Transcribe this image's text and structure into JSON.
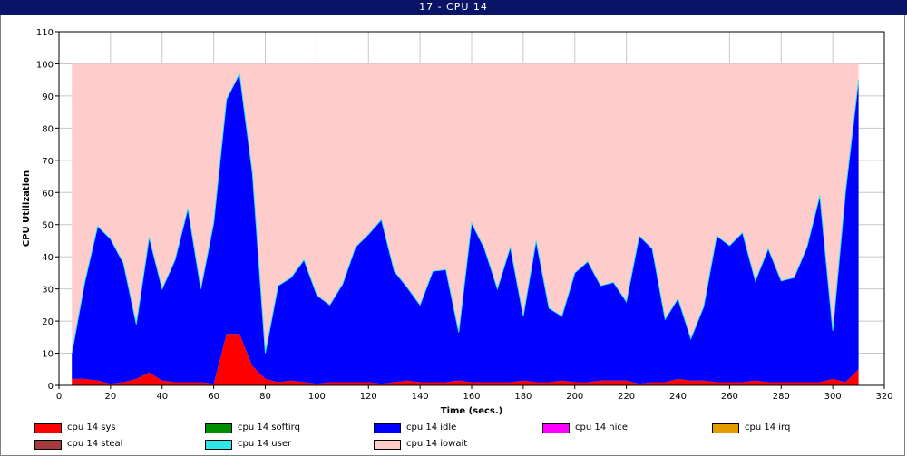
{
  "window": {
    "title": "17 - CPU 14"
  },
  "chart_data": {
    "type": "area",
    "stacked": true,
    "xlabel": "Time (secs.)",
    "ylabel": "CPU Utilization",
    "xlim": [
      0,
      320
    ],
    "ylim": [
      0,
      110
    ],
    "xticks": [
      0,
      20,
      40,
      60,
      80,
      100,
      120,
      140,
      160,
      180,
      200,
      220,
      240,
      260,
      280,
      300,
      320
    ],
    "yticks": [
      0,
      10,
      20,
      30,
      40,
      50,
      60,
      70,
      80,
      90,
      100,
      110
    ],
    "grid": true,
    "legend_position": "bottom",
    "x": [
      5,
      10,
      15,
      20,
      25,
      30,
      35,
      40,
      45,
      50,
      55,
      60,
      65,
      70,
      75,
      80,
      85,
      90,
      95,
      100,
      105,
      110,
      115,
      120,
      125,
      130,
      135,
      140,
      145,
      150,
      155,
      160,
      165,
      170,
      175,
      180,
      185,
      190,
      195,
      200,
      205,
      210,
      215,
      220,
      225,
      230,
      235,
      240,
      245,
      250,
      255,
      260,
      265,
      270,
      275,
      280,
      285,
      290,
      295,
      300,
      305,
      310
    ],
    "series": [
      {
        "name": "cpu 14 sys",
        "color": "#ff0000",
        "values": [
          2,
          2,
          1.5,
          0.5,
          1,
          2,
          4,
          1.5,
          1,
          1,
          1,
          0.5,
          16,
          16,
          6,
          2,
          1,
          1.5,
          1,
          0.5,
          1,
          1,
          1,
          1,
          0.5,
          1,
          1.5,
          1,
          1,
          1,
          1.5,
          1,
          1,
          1,
          1,
          1.5,
          1,
          1,
          1.5,
          1,
          1,
          1.5,
          1.5,
          1.5,
          0.5,
          1,
          1,
          2,
          1.5,
          1.5,
          1,
          1,
          1,
          1.5,
          1,
          1,
          1,
          1,
          1,
          2,
          1,
          5
        ]
      },
      {
        "name": "cpu 14 softirq",
        "color": "#008f00",
        "values": [
          0,
          0,
          0,
          0,
          0,
          0,
          0,
          0,
          0,
          0,
          0,
          0,
          0,
          0,
          0,
          0,
          0,
          0,
          0,
          0,
          0,
          0,
          0,
          0,
          0,
          0,
          0,
          0,
          0,
          0,
          0,
          0,
          0,
          0,
          0,
          0,
          0,
          0,
          0,
          0,
          0,
          0,
          0,
          0,
          0,
          0,
          0,
          0,
          0,
          0,
          0,
          0,
          0,
          0,
          0,
          0,
          0,
          0,
          0,
          0,
          0,
          0
        ]
      },
      {
        "name": "cpu 14 idle",
        "color": "#0000ff",
        "values": [
          8,
          30,
          48,
          45,
          37,
          17,
          42,
          28.5,
          38,
          54,
          29,
          50,
          73,
          81,
          60,
          8,
          30,
          32,
          38,
          27.5,
          24,
          30.5,
          42,
          46,
          51,
          34.5,
          29,
          24,
          34.5,
          35,
          15,
          49.5,
          41.5,
          29,
          42,
          20,
          44,
          23,
          20,
          34,
          37.5,
          29.5,
          30.5,
          24.5,
          46,
          41.5,
          19.5,
          25,
          13,
          23,
          45.5,
          42.5,
          46.5,
          31,
          41.5,
          31.5,
          32.5,
          42,
          58,
          15,
          59.5,
          90
        ]
      },
      {
        "name": "cpu 14 nice",
        "color": "#ff00ff",
        "values": [
          0,
          0,
          0,
          0,
          0,
          0,
          0,
          0,
          0,
          0,
          0,
          0,
          0,
          0,
          0,
          0,
          0,
          0,
          0,
          0,
          0,
          0,
          0,
          0,
          0,
          0,
          0,
          0,
          0,
          0,
          0,
          0,
          0,
          0,
          0,
          0,
          0,
          0,
          0,
          0,
          0,
          0,
          0,
          0,
          0,
          0,
          0,
          0,
          0,
          0,
          0,
          0,
          0,
          0,
          0,
          0,
          0,
          0,
          0,
          0,
          0,
          0
        ]
      },
      {
        "name": "cpu 14 irq",
        "color": "#e39b00",
        "values": [
          0,
          0,
          0,
          0,
          0,
          0,
          0,
          0,
          0,
          0,
          0,
          0,
          0,
          0,
          0,
          0,
          0,
          0,
          0,
          0,
          0,
          0,
          0,
          0,
          0,
          0,
          0,
          0,
          0,
          0,
          0,
          0,
          0,
          0,
          0,
          0,
          0,
          0,
          0,
          0,
          0,
          0,
          0,
          0,
          0,
          0,
          0,
          0,
          0,
          0,
          0,
          0,
          0,
          0,
          0,
          0,
          0,
          0,
          0,
          0,
          0,
          0
        ]
      },
      {
        "name": "cpu 14 steal",
        "color": "#a23c3c",
        "values": [
          0,
          0,
          0,
          0,
          0,
          0,
          0,
          0,
          0,
          0,
          0,
          0,
          0,
          0,
          0,
          0,
          0,
          0,
          0,
          0,
          0,
          0,
          0,
          0,
          0,
          0,
          0,
          0,
          0,
          0,
          0,
          0,
          0,
          0,
          0,
          0,
          0,
          0,
          0,
          0,
          0,
          0,
          0,
          0,
          0,
          0,
          0,
          0,
          0,
          0,
          0,
          0,
          0,
          0,
          0,
          0,
          0,
          0,
          0,
          0,
          0,
          0
        ]
      },
      {
        "name": "cpu 14 user",
        "color": "#2ee6e6",
        "values": [
          0,
          0,
          0,
          0,
          0,
          0,
          0,
          0,
          0,
          0,
          0,
          0,
          0,
          0,
          0,
          0,
          0,
          0,
          0,
          0,
          0,
          0,
          0,
          0,
          0,
          0,
          0,
          0,
          0,
          0,
          0,
          0,
          0,
          0,
          0,
          0,
          0,
          0,
          0,
          0,
          0,
          0,
          0,
          0,
          0,
          0,
          0,
          0,
          0,
          0,
          0,
          0,
          0,
          0,
          0,
          0,
          0,
          0,
          0,
          0,
          0,
          0
        ]
      },
      {
        "name": "cpu 14 iowait",
        "color": "#ffcccc",
        "values": [
          90,
          68,
          50.5,
          54.5,
          62,
          81,
          54,
          70,
          61,
          45,
          70,
          49.5,
          11,
          3,
          34,
          90,
          69,
          66.5,
          61,
          72,
          75,
          68.5,
          57,
          53,
          48.5,
          64.5,
          69.5,
          75,
          64.5,
          64,
          83.5,
          49.5,
          57.5,
          70,
          57,
          78.5,
          55,
          76,
          78.5,
          65,
          61.5,
          69,
          68,
          74,
          53.5,
          57.5,
          79.5,
          73,
          85.5,
          75.5,
          53.5,
          56.5,
          52.5,
          67.5,
          57.5,
          67.5,
          66.5,
          57,
          41,
          83,
          39.5,
          5
        ]
      }
    ]
  }
}
